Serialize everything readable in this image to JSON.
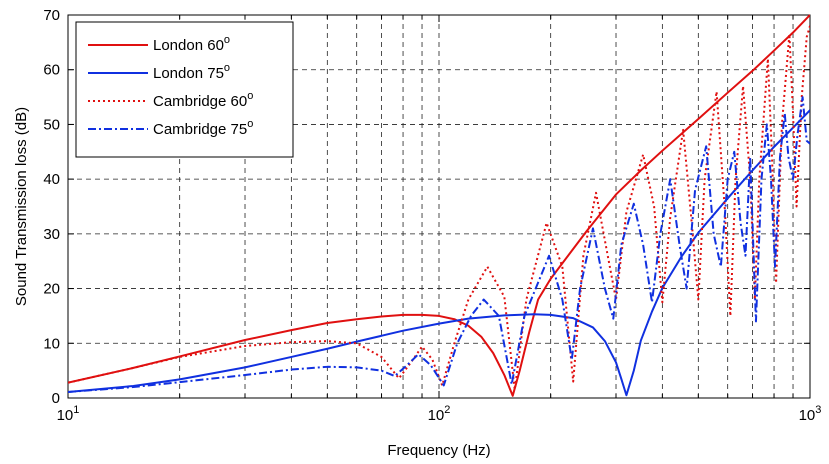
{
  "chart_data": {
    "type": "line",
    "title": "",
    "xlabel": "Frequency (Hz)",
    "ylabel": "Sound Transmission loss (dB)",
    "xscale": "log",
    "xlim": [
      10,
      1000
    ],
    "ylim": [
      0,
      70
    ],
    "grid": true,
    "legend_position": "top-left",
    "x_ticks": [
      {
        "base": "10",
        "exp": "1",
        "value": 10
      },
      {
        "base": "10",
        "exp": "2",
        "value": 100
      },
      {
        "base": "10",
        "exp": "3",
        "value": 1000
      }
    ],
    "y_ticks": [
      "0",
      "10",
      "20",
      "30",
      "40",
      "50",
      "60",
      "70"
    ],
    "series": [
      {
        "name": "London 60",
        "name_sup": "o",
        "color": "#e01010",
        "style": "solid",
        "points": [
          [
            10,
            2.8
          ],
          [
            15,
            5.5
          ],
          [
            20,
            7.6
          ],
          [
            30,
            10.6
          ],
          [
            40,
            12.4
          ],
          [
            50,
            13.7
          ],
          [
            60,
            14.4
          ],
          [
            70,
            14.9
          ],
          [
            80,
            15.2
          ],
          [
            90,
            15.2
          ],
          [
            100,
            15.0
          ],
          [
            110,
            14.4
          ],
          [
            120,
            13.2
          ],
          [
            130,
            11.2
          ],
          [
            140,
            8.2
          ],
          [
            150,
            4.2
          ],
          [
            158,
            0.4
          ],
          [
            165,
            5.0
          ],
          [
            175,
            12.0
          ],
          [
            185,
            18.0
          ],
          [
            200,
            21.8
          ],
          [
            250,
            30.5
          ],
          [
            300,
            37.2
          ],
          [
            350,
            41.6
          ],
          [
            400,
            45.2
          ],
          [
            500,
            51.0
          ],
          [
            600,
            55.8
          ],
          [
            700,
            59.8
          ],
          [
            800,
            63.5
          ],
          [
            900,
            66.8
          ],
          [
            1000,
            70.0
          ]
        ]
      },
      {
        "name": "London 75",
        "name_sup": "o",
        "color": "#1030e0",
        "style": "solid",
        "points": [
          [
            10,
            1.1
          ],
          [
            15,
            2.2
          ],
          [
            20,
            3.4
          ],
          [
            30,
            5.6
          ],
          [
            40,
            7.5
          ],
          [
            50,
            9.0
          ],
          [
            60,
            10.3
          ],
          [
            80,
            12.3
          ],
          [
            100,
            13.6
          ],
          [
            120,
            14.5
          ],
          [
            150,
            15.1
          ],
          [
            180,
            15.3
          ],
          [
            200,
            15.2
          ],
          [
            230,
            14.6
          ],
          [
            260,
            12.9
          ],
          [
            280,
            10.4
          ],
          [
            300,
            6.5
          ],
          [
            310,
            3.5
          ],
          [
            320,
            0.5
          ],
          [
            335,
            5.0
          ],
          [
            350,
            10.5
          ],
          [
            375,
            15.8
          ],
          [
            400,
            20.1
          ],
          [
            450,
            25.8
          ],
          [
            500,
            30.2
          ],
          [
            600,
            36.5
          ],
          [
            700,
            41.6
          ],
          [
            800,
            45.9
          ],
          [
            900,
            49.4
          ],
          [
            1000,
            52.6
          ]
        ]
      },
      {
        "name": "Cambridge 60",
        "name_sup": "o",
        "color": "#e01010",
        "style": "dotted",
        "points": [
          [
            10,
            2.8
          ],
          [
            15,
            5.5
          ],
          [
            20,
            7.5
          ],
          [
            30,
            9.5
          ],
          [
            40,
            10.2
          ],
          [
            50,
            10.4
          ],
          [
            60,
            10.0
          ],
          [
            70,
            7.5
          ],
          [
            78,
            3.6
          ],
          [
            84,
            6.5
          ],
          [
            90,
            9.4
          ],
          [
            96,
            7.0
          ],
          [
            102,
            2.3
          ],
          [
            110,
            10.0
          ],
          [
            120,
            18.0
          ],
          [
            135,
            24.0
          ],
          [
            150,
            18.5
          ],
          [
            160,
            1.5
          ],
          [
            172,
            18.0
          ],
          [
            195,
            32.0
          ],
          [
            215,
            24.0
          ],
          [
            230,
            3.0
          ],
          [
            245,
            26.0
          ],
          [
            265,
            37.5
          ],
          [
            285,
            26.0
          ],
          [
            300,
            18.0
          ],
          [
            320,
            34.0
          ],
          [
            355,
            44.5
          ],
          [
            380,
            35.0
          ],
          [
            400,
            17.5
          ],
          [
            420,
            33.0
          ],
          [
            455,
            49.0
          ],
          [
            480,
            32.0
          ],
          [
            500,
            18.0
          ],
          [
            520,
            40.0
          ],
          [
            560,
            56.0
          ],
          [
            590,
            34.0
          ],
          [
            610,
            15.0
          ],
          [
            630,
            40.0
          ],
          [
            660,
            57.0
          ],
          [
            690,
            40.0
          ],
          [
            710,
            18.0
          ],
          [
            730,
            40.0
          ],
          [
            770,
            62.0
          ],
          [
            790,
            44.0
          ],
          [
            810,
            21.0
          ],
          [
            840,
            50.0
          ],
          [
            880,
            66.5
          ],
          [
            900,
            52.0
          ],
          [
            920,
            35.0
          ],
          [
            950,
            55.0
          ],
          [
            980,
            66.0
          ],
          [
            1000,
            68.0
          ]
        ]
      },
      {
        "name": "Cambridge 75",
        "name_sup": "o",
        "color": "#1030e0",
        "style": "dashdot",
        "points": [
          [
            10,
            1.1
          ],
          [
            15,
            2.0
          ],
          [
            20,
            2.9
          ],
          [
            30,
            4.2
          ],
          [
            40,
            5.2
          ],
          [
            50,
            5.7
          ],
          [
            60,
            5.6
          ],
          [
            70,
            5.0
          ],
          [
            76,
            4.0
          ],
          [
            82,
            6.0
          ],
          [
            88,
            8.0
          ],
          [
            95,
            6.0
          ],
          [
            103,
            2.3
          ],
          [
            112,
            10.0
          ],
          [
            122,
            15.0
          ],
          [
            132,
            18.0
          ],
          [
            145,
            15.0
          ],
          [
            157,
            2.5
          ],
          [
            170,
            15.0
          ],
          [
            198,
            26.0
          ],
          [
            215,
            18.0
          ],
          [
            228,
            7.0
          ],
          [
            240,
            20.0
          ],
          [
            260,
            31.0
          ],
          [
            280,
            20.0
          ],
          [
            295,
            14.5
          ],
          [
            310,
            28.0
          ],
          [
            335,
            35.5
          ],
          [
            355,
            28.0
          ],
          [
            375,
            17.5
          ],
          [
            395,
            30.0
          ],
          [
            420,
            40.0
          ],
          [
            445,
            28.0
          ],
          [
            465,
            20.0
          ],
          [
            490,
            38.0
          ],
          [
            525,
            46.0
          ],
          [
            550,
            30.0
          ],
          [
            575,
            24.0
          ],
          [
            600,
            40.0
          ],
          [
            625,
            45.0
          ],
          [
            650,
            32.0
          ],
          [
            670,
            26.0
          ],
          [
            690,
            44.0
          ],
          [
            715,
            14.0
          ],
          [
            740,
            40.0
          ],
          [
            765,
            50.0
          ],
          [
            785,
            40.0
          ],
          [
            805,
            24.0
          ],
          [
            830,
            44.0
          ],
          [
            855,
            52.0
          ],
          [
            875,
            44.0
          ],
          [
            900,
            40.0
          ],
          [
            925,
            48.0
          ],
          [
            955,
            55.0
          ],
          [
            980,
            47.0
          ],
          [
            1000,
            46.5
          ]
        ]
      }
    ]
  }
}
